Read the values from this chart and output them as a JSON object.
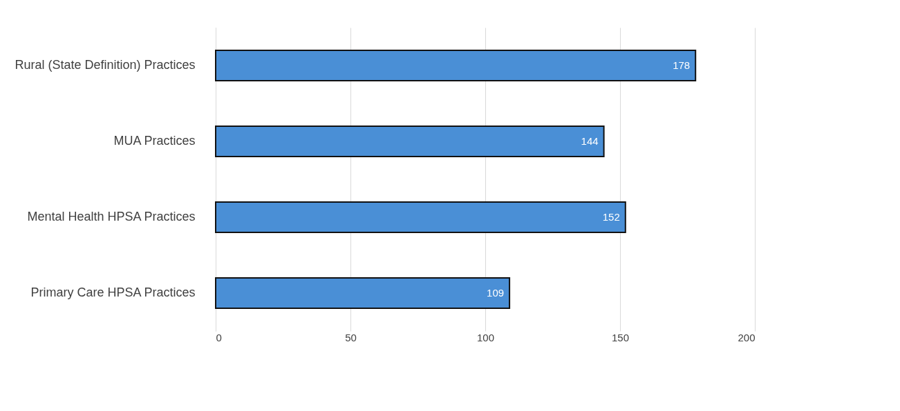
{
  "chart_data": {
    "type": "bar",
    "orientation": "horizontal",
    "categories": [
      "Rural (State Definition) Practices",
      "MUA Practices",
      "Mental Health HPSA Practices",
      "Primary Care HPSA Practices"
    ],
    "values": [
      178,
      144,
      152,
      109
    ],
    "color": "#4a8fd6",
    "xlim": [
      0,
      200
    ],
    "xticks": [
      0,
      50,
      100,
      150,
      200
    ],
    "grid": "x",
    "data_labels": true
  }
}
